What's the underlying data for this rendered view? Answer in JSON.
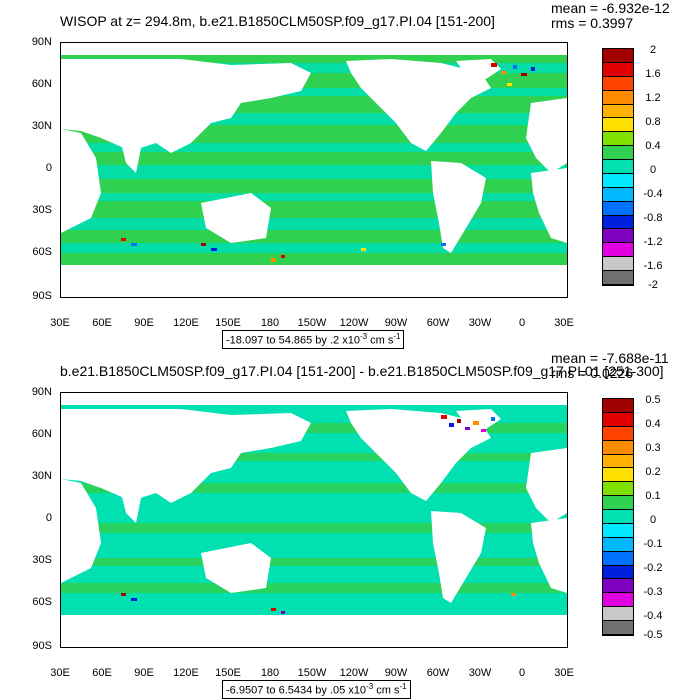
{
  "panels": [
    {
      "title": "WISOP at z= 294.8m, b.e21.B1850CLM50SP.f09_g17.PI.04 [151-200]",
      "mean_text": "mean = -6.932e-12",
      "rms_text": "rms = 0.3997",
      "info": {
        "range_text": "-18.097 to 54.865 by .2 x10",
        "exp": "-3",
        "unit_text": " cm s",
        "unit_exp": "-1"
      },
      "colorbar_labels": [
        "2",
        "1.6",
        "1.2",
        "0.8",
        "0.4",
        "0",
        "-0.4",
        "-0.8",
        "-1.2",
        "-1.6",
        "-2"
      ]
    },
    {
      "title": "b.e21.B1850CLM50SP.f09_g17.PI.04 [151-200] - b.e21.B1850CLM50SP.f09_g17.PI.01 [251-300]",
      "mean_text": "mean = -7.688e-11",
      "rms_text": "rms = 0.0226",
      "info": {
        "range_text": "-6.9507 to 6.5434 by .05 x10",
        "exp": "-3",
        "unit_text": " cm s",
        "unit_exp": "-1"
      },
      "colorbar_labels": [
        "0.5",
        "0.4",
        "0.3",
        "0.2",
        "0.1",
        "0",
        "-0.1",
        "-0.2",
        "-0.3",
        "-0.4",
        "-0.5"
      ]
    }
  ],
  "lat_labels": [
    "90N",
    "60N",
    "30N",
    "0",
    "30S",
    "60S",
    "90S"
  ],
  "lon_labels": [
    "30E",
    "60E",
    "90E",
    "120E",
    "150E",
    "180",
    "150W",
    "120W",
    "90W",
    "60W",
    "30W",
    "0",
    "30E"
  ],
  "colorbar_colors": [
    "#a00000",
    "#e00000",
    "#ff4400",
    "#ff8c00",
    "#ffb000",
    "#ffe000",
    "#80e000",
    "#30d050",
    "#00e0b0",
    "#00e8ff",
    "#00b8ff",
    "#0070ff",
    "#0020e0",
    "#8000c0",
    "#e000e0",
    "#c8c8c8",
    "#707070"
  ],
  "colors": {
    "ocean_base": "#30d050",
    "ocean_alt": "#00e0b0",
    "land": "#ffffff"
  }
}
